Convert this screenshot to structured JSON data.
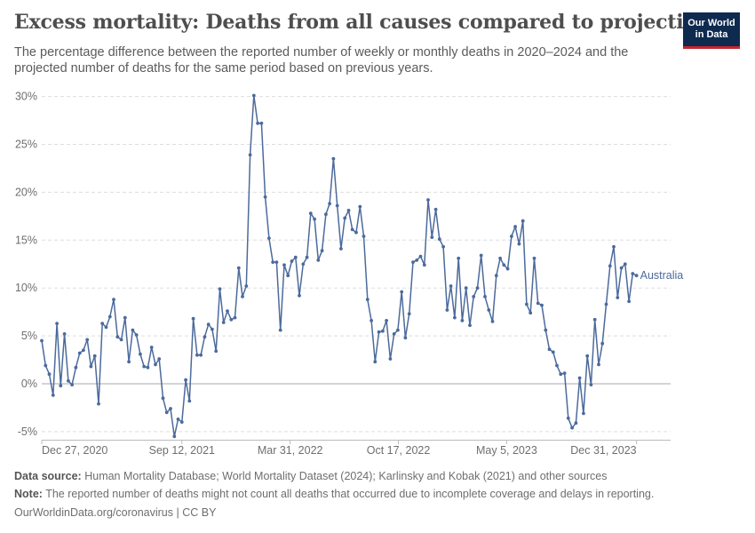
{
  "header": {
    "title": "Excess mortality: Deaths from all causes compared to projection",
    "subtitle": "The percentage difference between the reported number of weekly or monthly deaths in 2020–2024 and the projected number of deaths for the same period based on previous years.",
    "logo_line1": "Our World",
    "logo_line2": "in Data"
  },
  "footer": {
    "source_label": "Data source:",
    "source_text": "Human Mortality Database; World Mortality Dataset (2024); Karlinsky and Kobak (2021) and other sources",
    "note_label": "Note:",
    "note_text": "The reported number of deaths might not count all deaths that occurred due to incomplete coverage and delays in reporting.",
    "credit": "OurWorldinData.org/coronavirus | CC BY"
  },
  "colors": {
    "line": "#4c6a9c",
    "grid": "#dddddd",
    "zero": "#aaaaaa"
  },
  "chart_data": {
    "type": "line",
    "series": [
      {
        "name": "Australia",
        "x_start": "2020-12-27",
        "x_step_days": 7,
        "values": [
          4.5,
          1.9,
          1.0,
          -1.2,
          6.3,
          -0.2,
          5.2,
          0.3,
          -0.1,
          1.7,
          3.2,
          3.5,
          4.6,
          1.8,
          2.9,
          -2.1,
          6.3,
          5.9,
          7.0,
          8.8,
          4.9,
          4.6,
          6.9,
          2.3,
          5.6,
          5.1,
          3.1,
          1.8,
          1.7,
          3.8,
          2.0,
          2.6,
          -1.5,
          -3.0,
          -2.6,
          -5.5,
          -3.7,
          -4.0,
          0.4,
          -1.8,
          6.8,
          3.0,
          3.0,
          4.9,
          6.2,
          5.7,
          3.4,
          9.9,
          6.4,
          7.6,
          6.7,
          6.9,
          12.1,
          9.1,
          10.2,
          23.9,
          30.1,
          27.2,
          27.2,
          19.5,
          15.2,
          12.7,
          12.7,
          5.6,
          12.4,
          11.3,
          12.8,
          13.2,
          9.2,
          12.5,
          13.2,
          17.8,
          17.2,
          12.9,
          13.9,
          17.7,
          18.8,
          23.5,
          18.6,
          14.1,
          17.3,
          18.1,
          16.1,
          15.8,
          18.5,
          15.4,
          8.8,
          6.6,
          2.3,
          5.4,
          5.5,
          6.6,
          2.6,
          5.2,
          5.6,
          9.6,
          4.8,
          7.3,
          12.7,
          12.9,
          13.3,
          12.4,
          19.2,
          15.3,
          18.2,
          15.1,
          14.3,
          7.7,
          10.2,
          6.9,
          13.1,
          6.6,
          10.0,
          6.1,
          9.1,
          10.0,
          13.4,
          9.1,
          7.7,
          6.5,
          11.3,
          13.1,
          12.4,
          12.0,
          15.4,
          16.4,
          14.6,
          17.0,
          8.3,
          7.4,
          13.1,
          8.4,
          8.2,
          5.6,
          3.6,
          3.3,
          1.9,
          1.0,
          1.1,
          -3.6,
          -4.6,
          -4.1,
          0.6,
          -3.1,
          2.9,
          -0.1,
          6.7,
          2.0,
          4.2,
          8.3,
          12.3,
          14.3,
          9.0,
          12.1,
          12.5,
          8.6,
          11.5,
          11.3
        ]
      }
    ],
    "x_tick_labels": [
      "Dec 27, 2020",
      "Sep 12, 2021",
      "Mar 31, 2022",
      "Oct 17, 2022",
      "May 5, 2023",
      "Dec 31, 2023"
    ],
    "x_tick_dates": [
      "2020-12-27",
      "2021-09-12",
      "2022-03-31",
      "2022-10-17",
      "2023-05-05",
      "2023-12-31"
    ],
    "x_range": [
      "2020-12-27",
      "2024-03-03"
    ],
    "y_ticks": [
      -5,
      0,
      5,
      10,
      15,
      20,
      25,
      30
    ],
    "y_tick_labels": [
      "-5%",
      "0%",
      "5%",
      "10%",
      "15%",
      "20%",
      "25%",
      "30%"
    ],
    "ylim": [
      -5.5,
      30.5
    ],
    "grid": true,
    "legend": "line-end label"
  }
}
